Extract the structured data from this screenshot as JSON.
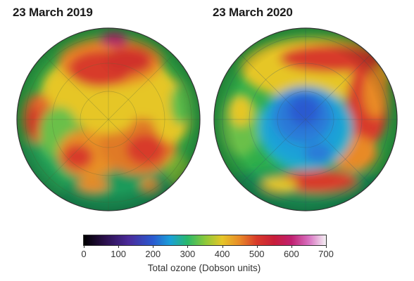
{
  "panels": [
    {
      "title": "23 March 2019",
      "state": "normal-high-ozone"
    },
    {
      "title": "23 March 2020",
      "state": "polar-ozone-hole"
    }
  ],
  "colorbar": {
    "ticks": [
      "0",
      "100",
      "200",
      "300",
      "400",
      "500",
      "600",
      "700"
    ],
    "caption": "Total ozone (Dobson units)",
    "range": [
      0,
      700
    ],
    "stops": [
      {
        "value": 0,
        "color": "#000000"
      },
      {
        "value": 60,
        "color": "#2a0f4a"
      },
      {
        "value": 130,
        "color": "#4a2a9a"
      },
      {
        "value": 200,
        "color": "#2a5ad0"
      },
      {
        "value": 250,
        "color": "#1aa0d8"
      },
      {
        "value": 300,
        "color": "#2ab86a"
      },
      {
        "value": 350,
        "color": "#8ac83a"
      },
      {
        "value": 400,
        "color": "#e6c628"
      },
      {
        "value": 450,
        "color": "#e88a28"
      },
      {
        "value": 500,
        "color": "#d83a2a"
      },
      {
        "value": 550,
        "color": "#c81e3a"
      },
      {
        "value": 600,
        "color": "#c02070"
      },
      {
        "value": 650,
        "color": "#d870c0"
      },
      {
        "value": 700,
        "color": "#f4f0f4"
      }
    ]
  }
}
